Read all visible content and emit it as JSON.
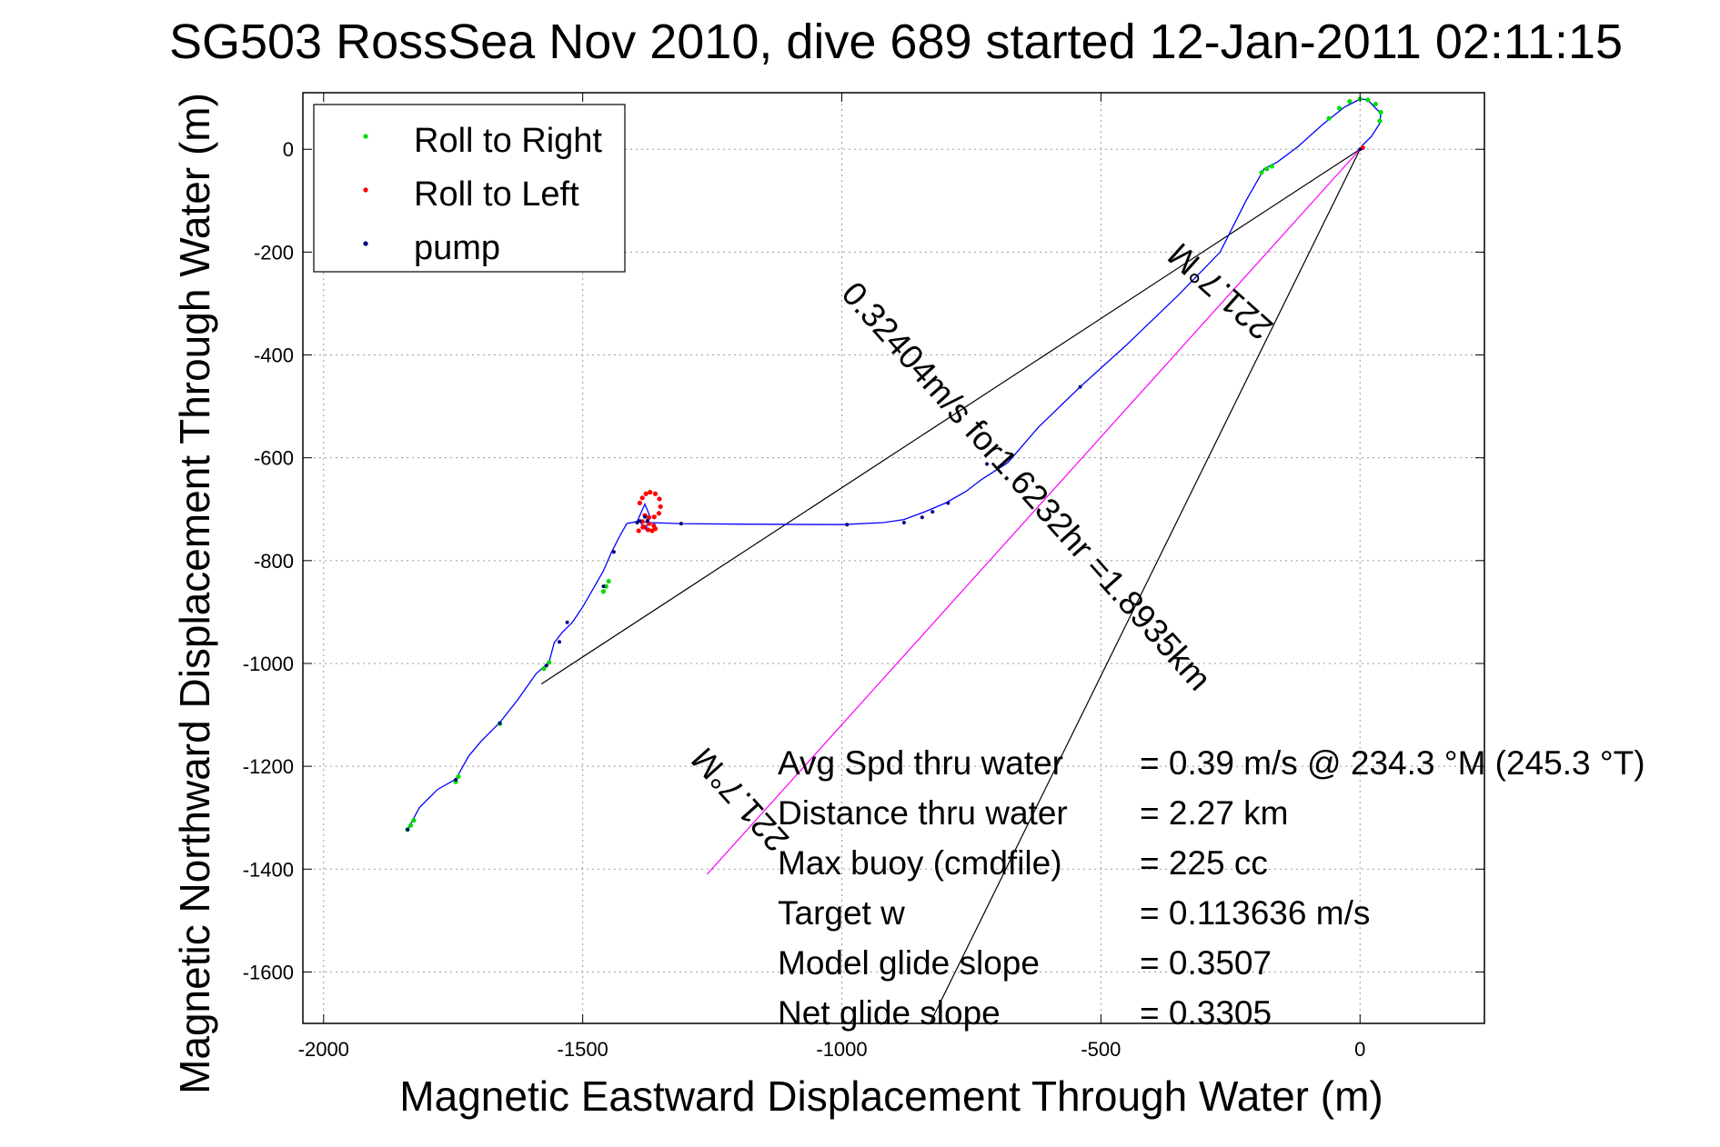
{
  "chart_data": {
    "type": "line",
    "title": "SG503 RossSea Nov 2010, dive 689 started 12-Jan-2011 02:11:15",
    "xlabel": "Magnetic Eastward Displacement Through Water (m)",
    "ylabel": "Magnetic Northward Displacement Through Water (m)",
    "xlim": [
      -2040,
      240
    ],
    "ylim": [
      -1700,
      110
    ],
    "xticks": [
      -2000,
      -1500,
      -1000,
      -500,
      0
    ],
    "yticks": [
      0,
      -200,
      -400,
      -600,
      -800,
      -1000,
      -1200,
      -1400,
      -1600
    ],
    "grid": true,
    "legend_position": "top-left",
    "legend": [
      {
        "label": "Roll to Right",
        "color": "#00dd00"
      },
      {
        "label": "Roll to Left",
        "color": "#ff0000"
      },
      {
        "label": "pump",
        "color": "#000080"
      }
    ],
    "track": {
      "color": "#0000ff",
      "x": [
        -1838,
        -1815,
        -1780,
        -1745,
        -1720,
        -1695,
        -1660,
        -1625,
        -1590,
        -1565,
        -1555,
        -1540,
        -1520,
        -1500,
        -1480,
        -1460,
        -1445,
        -1430,
        -1415,
        -1395,
        -1380,
        -1372,
        -1378,
        -1390,
        -1370,
        -1310,
        -1200,
        -1000,
        -920,
        -880,
        -840,
        -800,
        -760,
        -730,
        -680,
        -620,
        -540,
        -450,
        -350,
        -270,
        -220,
        -185,
        -160,
        -120,
        -70,
        -30,
        -5,
        0,
        15,
        30,
        40,
        38,
        22,
        5,
        0
      ],
      "y": [
        -1323,
        -1280,
        -1245,
        -1225,
        -1180,
        -1150,
        -1115,
        -1070,
        -1020,
        -998,
        -960,
        -940,
        -920,
        -890,
        -855,
        -820,
        -785,
        -755,
        -728,
        -724,
        -690,
        -710,
        -740,
        -724,
        -726,
        -728,
        -729,
        -730,
        -726,
        -720,
        -705,
        -688,
        -665,
        -642,
        -610,
        -540,
        -462,
        -380,
        -283,
        -200,
        -100,
        -38,
        -25,
        5,
        50,
        82,
        95,
        98,
        96,
        80,
        70,
        50,
        25,
        8,
        0
      ]
    },
    "roll_right": {
      "color": "#00dd00",
      "x": [
        -1838,
        -1832,
        -1826,
        -1745,
        -1740,
        -1660,
        -1575,
        -1565,
        -1460,
        -1455,
        -1450,
        -190,
        -180,
        -170,
        -60,
        -40,
        -20,
        0,
        15,
        30,
        40,
        38
      ],
      "y": [
        -1323,
        -1315,
        -1305,
        -1230,
        -1220,
        -1117,
        -1010,
        -998,
        -860,
        -850,
        -840,
        -45,
        -38,
        -33,
        60,
        80,
        93,
        98,
        96,
        88,
        72,
        55
      ]
    },
    "roll_left": {
      "color": "#ff0000",
      "x": [
        -1390,
        -1385,
        -1378,
        -1370,
        -1360,
        -1352,
        -1350,
        -1353,
        -1362,
        -1372,
        -1380,
        -1385,
        -1382,
        -1374,
        -1366,
        -1360,
        -1363,
        -1372,
        -1384,
        -1392,
        5
      ],
      "y": [
        -688,
        -678,
        -670,
        -667,
        -670,
        -680,
        -695,
        -708,
        -715,
        -716,
        -712,
        -724,
        -734,
        -740,
        -742,
        -738,
        -732,
        -728,
        -735,
        -742,
        3
      ]
    },
    "pump": {
      "color": "#000080",
      "x": [
        -1838,
        -1745,
        -1660,
        -1570,
        -1545,
        -1530,
        -1460,
        -1440,
        -1395,
        -1390,
        -1380,
        -1375,
        -1310,
        -990,
        -880,
        -845,
        -825,
        -795,
        -720,
        -540,
        0
      ],
      "y": [
        -1323,
        -1226,
        -1116,
        -1004,
        -958,
        -920,
        -850,
        -783,
        -726,
        -723,
        -715,
        -722,
        -728,
        -730,
        -726,
        -716,
        -705,
        -688,
        -612,
        -462,
        0
      ]
    },
    "lines": [
      {
        "color": "#000000",
        "x": [
          -1580,
          0
        ],
        "y": [
          -1040,
          0
        ]
      },
      {
        "color": "#000000",
        "x": [
          -830,
          0
        ],
        "y": [
          -1700,
          0
        ]
      },
      {
        "color": "#ff00ff",
        "x": [
          -1260,
          0
        ],
        "y": [
          -1410,
          0
        ]
      }
    ],
    "annotations": [
      {
        "text": "0.32404m/s for1.6232hr =1.8935km",
        "x": -660,
        "y": -670,
        "angle": 48.2
      },
      {
        "text": "221.7°M",
        "x": -255,
        "y": -260,
        "angle": 221.7
      },
      {
        "text": "221.7°M",
        "x": -1180,
        "y": -1250,
        "angle": 228
      }
    ],
    "stats": [
      {
        "label": "Avg Spd thru water",
        "value": "=  0.39 m/s @ 234.3 °M (245.3 °T)"
      },
      {
        "label": "Distance thru water",
        "value": "=  2.27 km"
      },
      {
        "label": "Max buoy (cmdfile)",
        "value": "= 225 cc"
      },
      {
        "label": "Target w",
        "value": "= 0.113636 m/s"
      },
      {
        "label": "Model glide slope",
        "value": "= 0.3507"
      },
      {
        "label": "Net glide slope",
        "value": "= 0.3305"
      }
    ]
  }
}
